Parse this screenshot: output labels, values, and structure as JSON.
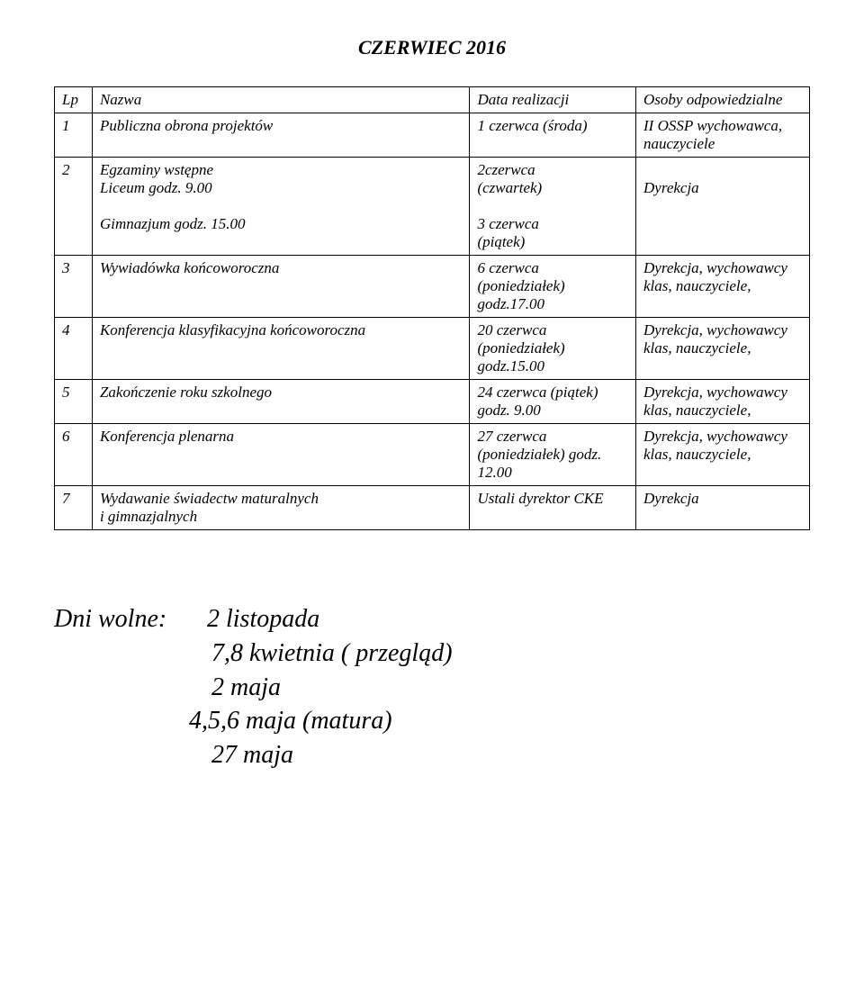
{
  "title": "CZERWIEC  2016",
  "table": {
    "headers": {
      "lp": "Lp",
      "nazwa": "Nazwa",
      "data": "Data realizacji",
      "osoby": "Osoby odpowiedzialne"
    },
    "rows": [
      {
        "lp": "1",
        "nazwa": "Publiczna obrona projektów",
        "data": "1 czerwca (środa)",
        "osoby": "II OSSP wychowawca, nauczyciele"
      },
      {
        "lp": "2",
        "nazwa_line1": "Egzaminy wstępne",
        "nazwa_line2": "Liceum   godz. 9.00",
        "nazwa_line3": "",
        "nazwa_line4": "Gimnazjum godz. 15.00",
        "data_line1": "2czerwca",
        "data_line2": "(czwartek)",
        "data_line3": "",
        "data_line4": "3 czerwca",
        "data_line5": "(piątek)",
        "osoby_line1": "",
        "osoby_line2": "Dyrekcja"
      },
      {
        "lp": "3",
        "nazwa": "Wywiadówka końcoworoczna",
        "data": "6 czerwca (poniedziałek) godz.17.00",
        "osoby": "Dyrekcja, wychowawcy  klas, nauczyciele,"
      },
      {
        "lp": "4",
        "nazwa": "Konferencja klasyfikacyjna końcoworoczna",
        "data": "20 czerwca (poniedziałek) godz.15.00",
        "osoby": "Dyrekcja, wychowawcy  klas, nauczyciele,"
      },
      {
        "lp": "5",
        "nazwa": "Zakończenie roku szkolnego",
        "data": "24 czerwca (piątek)\ngodz. 9.00",
        "osoby": "Dyrekcja, wychowawcy  klas, nauczyciele,"
      },
      {
        "lp": "6",
        "nazwa": "Konferencja plenarna",
        "data": "27 czerwca (poniedziałek) godz. 12.00",
        "osoby": "Dyrekcja, wychowawcy  klas, nauczyciele,"
      },
      {
        "lp": "7",
        "nazwa": "Wydawanie świadectw maturalnych\ni gimnazjalnych",
        "data": "Ustali dyrektor CKE",
        "osoby": "Dyrekcja"
      }
    ]
  },
  "freeDays": {
    "label": "Dni wolne:",
    "line1": "2 listopada",
    "line2": "7,8 kwietnia ( przegląd)",
    "line3": "2 maja",
    "line4": "4,5,6 maja (matura)",
    "line5": "27 maja"
  }
}
